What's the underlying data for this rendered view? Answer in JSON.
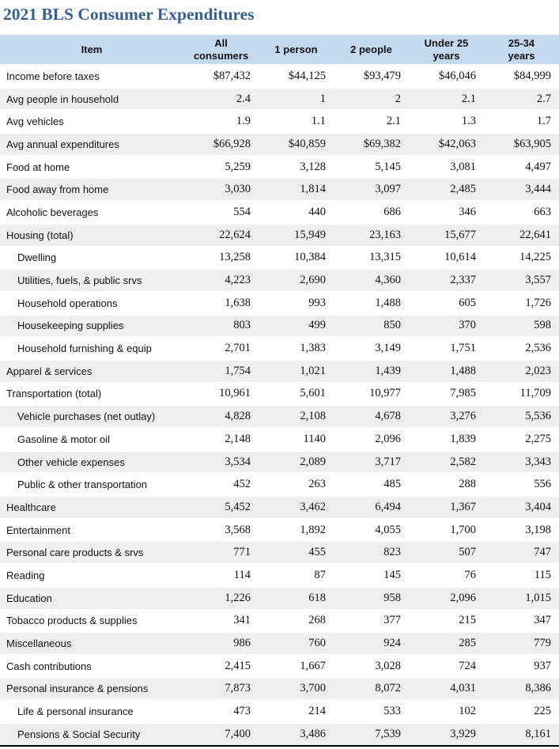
{
  "title": "2021 BLS Consumer Expenditures",
  "colors": {
    "header_bg": "#c5d9f1",
    "stripe": "#efefef",
    "title_color": "#365f91",
    "text": "#111111",
    "row_separator": "#ffffff",
    "table_bottom_border": "#000000"
  },
  "chart_data": {
    "type": "table",
    "title": "2021 BLS Consumer Expenditures",
    "columns": [
      "Item",
      "All\nconsumers",
      "1 person",
      "2 people",
      "Under 25\nyears",
      "25-34\nyears"
    ],
    "rows": [
      {
        "label": "Income before taxes",
        "indent": 0,
        "values": [
          "$87,432",
          "$44,125",
          "$93,479",
          "$46,046",
          "$84,999"
        ]
      },
      {
        "label": "Avg people in household",
        "indent": 0,
        "values": [
          "2.4",
          "1",
          "2",
          "2.1",
          "2.7"
        ]
      },
      {
        "label": "Avg vehicles",
        "indent": 0,
        "values": [
          "1.9",
          "1.1",
          "2.1",
          "1.3",
          "1.7"
        ]
      },
      {
        "label": "Avg annual expenditures",
        "indent": 0,
        "values": [
          "$66,928",
          "$40,859",
          "$69,382",
          "$42,063",
          "$63,905"
        ]
      },
      {
        "label": "Food at home",
        "indent": 0,
        "values": [
          "5,259",
          "3,128",
          "5,145",
          "3,081",
          "4,497"
        ]
      },
      {
        "label": "Food away from home",
        "indent": 0,
        "values": [
          "3,030",
          "1,814",
          "3,097",
          "2,485",
          "3,444"
        ]
      },
      {
        "label": "Alcoholic beverages",
        "indent": 0,
        "values": [
          "554",
          "440",
          "686",
          "346",
          "663"
        ]
      },
      {
        "label": "Housing (total)",
        "indent": 0,
        "values": [
          "22,624",
          "15,949",
          "23,163",
          "15,677",
          "22,641"
        ]
      },
      {
        "label": "Dwelling",
        "indent": 1,
        "values": [
          "13,258",
          "10,384",
          "13,315",
          "10,614",
          "14,225"
        ]
      },
      {
        "label": "Utilities, fuels, & public srvs",
        "indent": 1,
        "values": [
          "4,223",
          "2,690",
          "4,360",
          "2,337",
          "3,557"
        ]
      },
      {
        "label": "Household operations",
        "indent": 1,
        "values": [
          "1,638",
          "993",
          "1,488",
          "605",
          "1,726"
        ]
      },
      {
        "label": "Housekeeping supplies",
        "indent": 1,
        "values": [
          "803",
          "499",
          "850",
          "370",
          "598"
        ]
      },
      {
        "label": "Household furnishing & equip",
        "indent": 1,
        "values": [
          "2,701",
          "1,383",
          "3,149",
          "1,751",
          "2,536"
        ]
      },
      {
        "label": "Apparel & services",
        "indent": 0,
        "values": [
          "1,754",
          "1,021",
          "1,439",
          "1,488",
          "2,023"
        ]
      },
      {
        "label": "Transportation (total)",
        "indent": 0,
        "values": [
          "10,961",
          "5,601",
          "10,977",
          "7,985",
          "11,709"
        ]
      },
      {
        "label": "Vehicle purchases (net outlay)",
        "indent": 1,
        "values": [
          "4,828",
          "2,108",
          "4,678",
          "3,276",
          "5,536"
        ]
      },
      {
        "label": "Gasoline & motor oil",
        "indent": 1,
        "values": [
          "2,148",
          "1140",
          "2,096",
          "1,839",
          "2,275"
        ]
      },
      {
        "label": "Other vehicle expenses",
        "indent": 1,
        "values": [
          "3,534",
          "2,089",
          "3,717",
          "2,582",
          "3,343"
        ]
      },
      {
        "label": "Public & other transportation",
        "indent": 1,
        "values": [
          "452",
          "263",
          "485",
          "288",
          "556"
        ]
      },
      {
        "label": "Healthcare",
        "indent": 0,
        "values": [
          "5,452",
          "3,462",
          "6,494",
          "1,367",
          "3,404"
        ]
      },
      {
        "label": "Entertainment",
        "indent": 0,
        "values": [
          "3,568",
          "1,892",
          "4,055",
          "1,700",
          "3,198"
        ]
      },
      {
        "label": "Personal care products & srvs",
        "indent": 0,
        "values": [
          "771",
          "455",
          "823",
          "507",
          "747"
        ]
      },
      {
        "label": "Reading",
        "indent": 0,
        "values": [
          "114",
          "87",
          "145",
          "76",
          "115"
        ]
      },
      {
        "label": "Education",
        "indent": 0,
        "values": [
          "1,226",
          "618",
          "958",
          "2,096",
          "1,015"
        ]
      },
      {
        "label": "Tobacco products & supplies",
        "indent": 0,
        "values": [
          "341",
          "268",
          "377",
          "215",
          "347"
        ]
      },
      {
        "label": "Miscellaneous",
        "indent": 0,
        "values": [
          "986",
          "760",
          "924",
          "285",
          "779"
        ]
      },
      {
        "label": "Cash contributions",
        "indent": 0,
        "values": [
          "2,415",
          "1,667",
          "3,028",
          "724",
          "937"
        ]
      },
      {
        "label": "Personal insurance & pensions",
        "indent": 0,
        "values": [
          "7,873",
          "3,700",
          "8,072",
          "4,031",
          "8,386"
        ]
      },
      {
        "label": "Life & personal insurance",
        "indent": 1,
        "values": [
          "473",
          "214",
          "533",
          "102",
          "225"
        ]
      },
      {
        "label": "Pensions & Social Security",
        "indent": 1,
        "values": [
          "7,400",
          "3,486",
          "7,539",
          "3,929",
          "8,161"
        ]
      }
    ]
  }
}
